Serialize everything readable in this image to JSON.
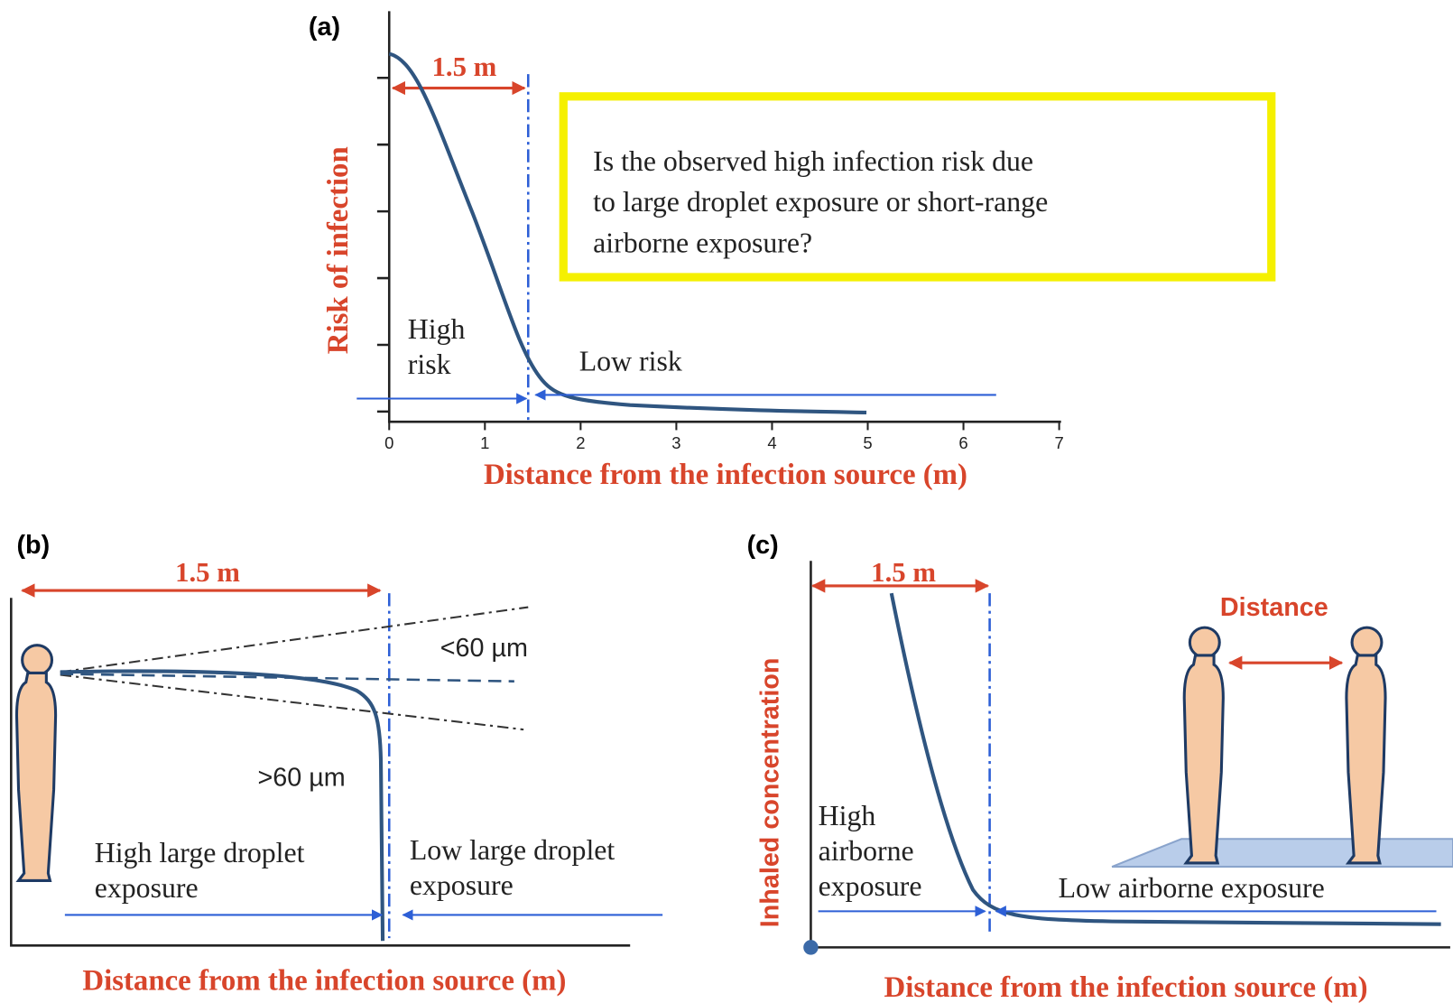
{
  "panels": [
    {
      "label": "(a)",
      "y_axis_label": "Risk of infection",
      "x_axis_label": "Distance from the infection source (m)",
      "x_ticks": [
        0,
        1,
        2,
        3,
        4,
        5,
        6,
        7
      ],
      "distance_label": "1.5 m",
      "high_label": [
        "High",
        "risk"
      ],
      "low_label": [
        "Low risk"
      ],
      "question": [
        "Is the observed high infection risk due",
        "to large droplet exposure or short-range",
        "airborne exposure?"
      ]
    },
    {
      "label": "(b)",
      "x_axis_label": "Distance from the infection source (m)",
      "distance_label": "1.5 m",
      "small_label": "<60 µm",
      "large_label": ">60 µm",
      "high_label": [
        "High large droplet",
        "exposure"
      ],
      "low_label": [
        "Low large droplet",
        "exposure"
      ]
    },
    {
      "label": "(c)",
      "y_axis_label": "Inhaled concentration",
      "x_axis_label": "Distance from the infection source (m)",
      "distance_label": "1.5 m",
      "people_label": "Distance",
      "high_label": [
        "High",
        "airborne",
        "exposure"
      ],
      "low_label": [
        "Low airborne exposure"
      ]
    }
  ]
}
